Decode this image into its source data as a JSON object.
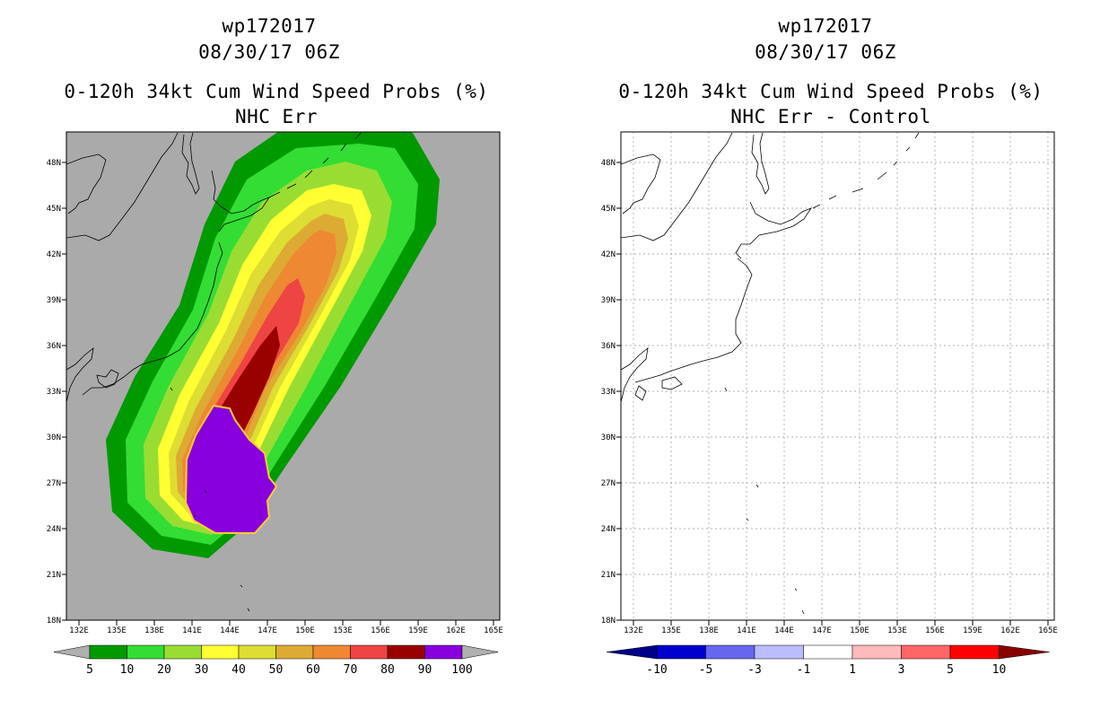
{
  "left_panel": {
    "storm_id": "wp172017",
    "datetime": "08/30/17 06Z",
    "product": "0-120h 34kt Cum Wind Speed Probs (%)",
    "subtitle": "NHC Err"
  },
  "right_panel": {
    "storm_id": "wp172017",
    "datetime": "08/30/17 06Z",
    "product": "0-120h 34kt Cum Wind Speed Probs (%)",
    "subtitle": "NHC Err - Control"
  },
  "axes": {
    "lon_ticks": [
      "132E",
      "135E",
      "138E",
      "141E",
      "144E",
      "147E",
      "150E",
      "153E",
      "156E",
      "159E",
      "162E",
      "165E"
    ],
    "lat_ticks": [
      "48N",
      "45N",
      "42N",
      "39N",
      "36N",
      "33N",
      "30N",
      "27N",
      "24N",
      "21N",
      "18N"
    ],
    "lon_range": [
      131.5,
      165.5
    ],
    "lat_range": [
      18,
      50
    ]
  },
  "left_colorbar": {
    "labels": [
      "5",
      "10",
      "20",
      "30",
      "40",
      "50",
      "60",
      "70",
      "80",
      "90",
      "100"
    ],
    "colors": [
      "#009900",
      "#33dd33",
      "#99dd33",
      "#ffff33",
      "#dddd33",
      "#ddaa33",
      "#ee8833",
      "#ee4444",
      "#990000",
      "#8800dd"
    ],
    "end_color": "#b0b0b0"
  },
  "right_colorbar": {
    "labels": [
      "-10",
      "-5",
      "-3",
      "-1",
      "1",
      "3",
      "5",
      "10"
    ],
    "colors": [
      "#0000cc",
      "#6666ee",
      "#bbbbff",
      "#ffffff",
      "#ffbbbb",
      "#ff6666",
      "#ff0000"
    ],
    "end_low": "#000088",
    "end_high": "#880000"
  },
  "colors": {
    "map_background": "#aaaaaa"
  }
}
